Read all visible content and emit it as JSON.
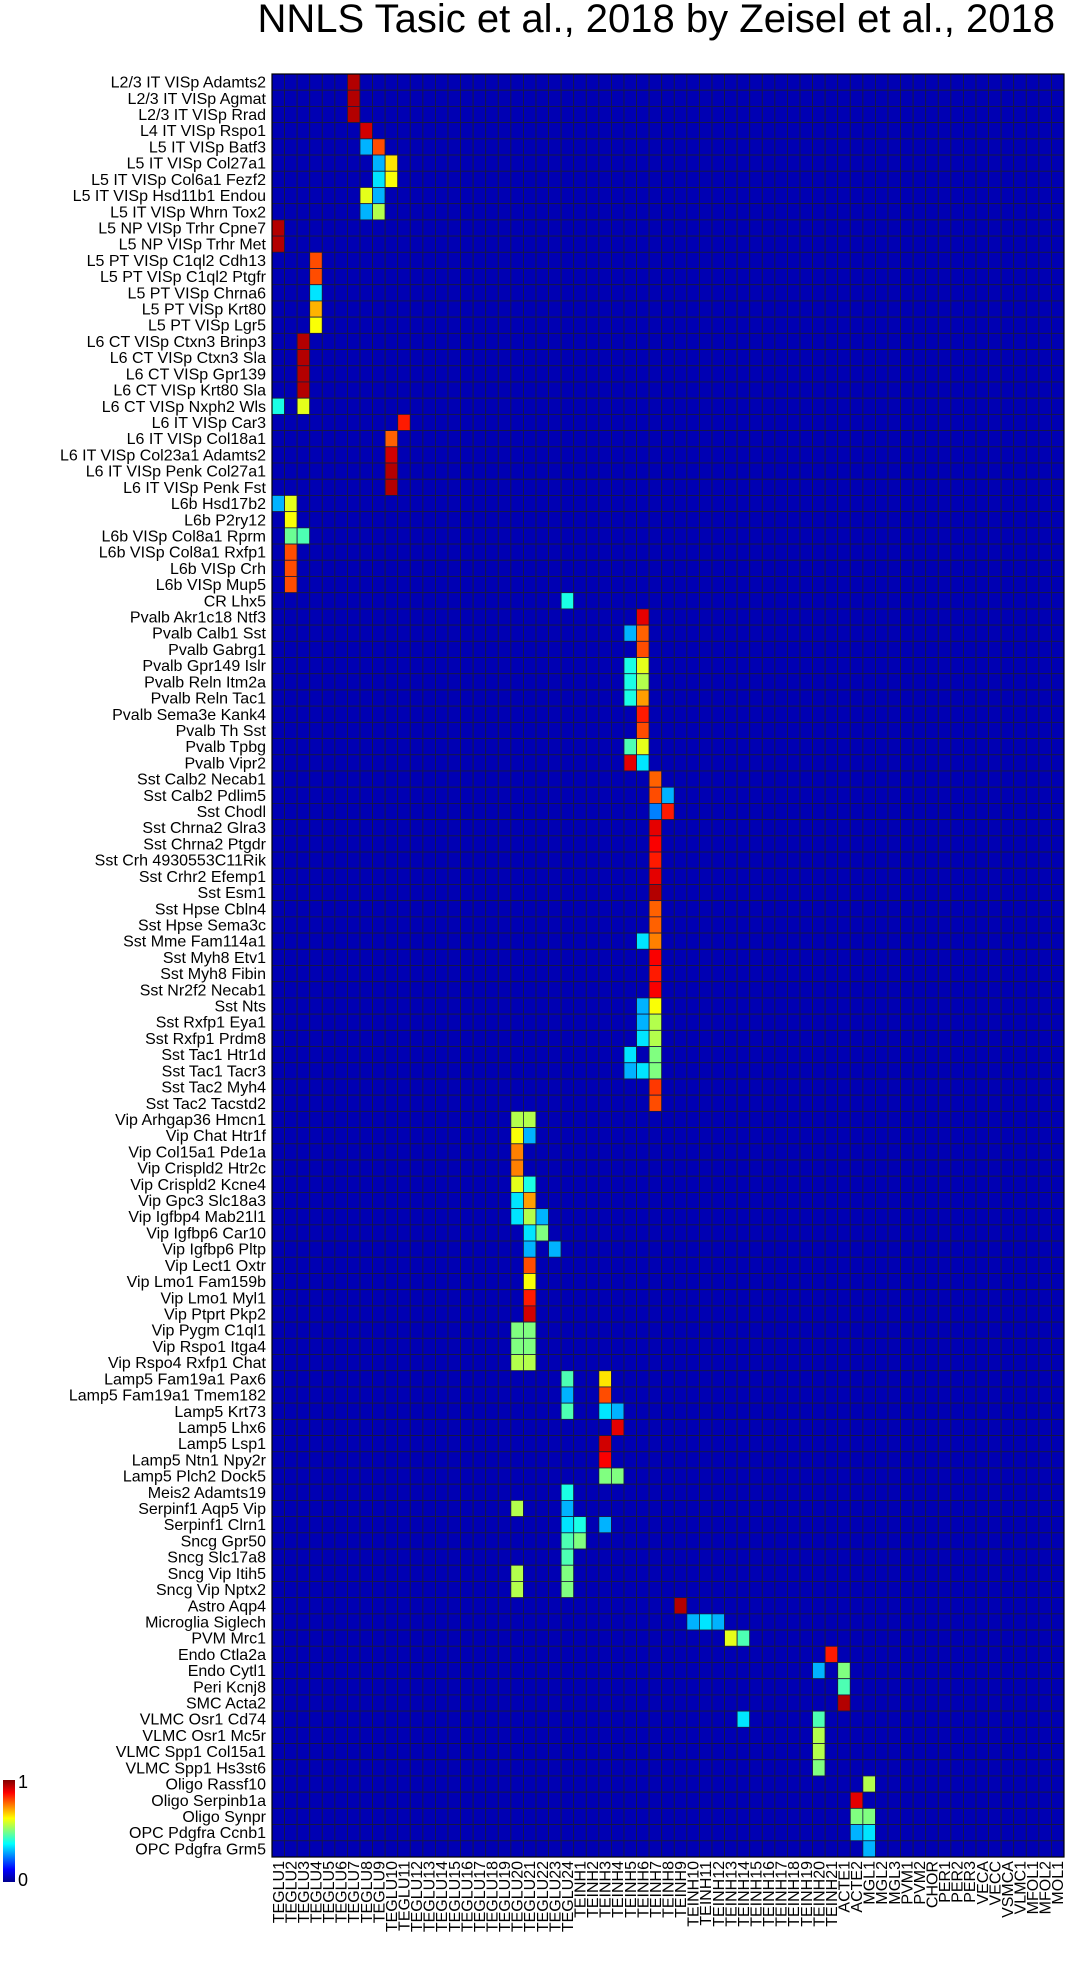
{
  "chart_data": {
    "type": "heatmap",
    "title": "NNLS Tasic et al., 2018 by Zeisel et al., 2018",
    "xlabel": "",
    "ylabel": "",
    "colormap": "jet",
    "colorbar": {
      "min_label": "0",
      "max_label": "1",
      "range": [
        0,
        1
      ],
      "position": "bottom-left"
    },
    "grid": true,
    "rows": [
      "L2/3 IT VISp Adamts2",
      "L2/3 IT VISp Agmat",
      "L2/3 IT VISp Rrad",
      "L4 IT VISp Rspo1",
      "L5 IT VISp Batf3",
      "L5 IT VISp Col27a1",
      "L5 IT VISp Col6a1 Fezf2",
      "L5 IT VISp Hsd11b1 Endou",
      "L5 IT VISp Whrn Tox2",
      "L5 NP VISp Trhr Cpne7",
      "L5 NP VISp Trhr Met",
      "L5 PT VISp C1ql2 Cdh13",
      "L5 PT VISp C1ql2 Ptgfr",
      "L5 PT VISp Chrna6",
      "L5 PT VISp Krt80",
      "L5 PT VISp Lgr5",
      "L6 CT VISp Ctxn3 Brinp3",
      "L6 CT VISp Ctxn3 Sla",
      "L6 CT VISp Gpr139",
      "L6 CT VISp Krt80 Sla",
      "L6 CT VISp Nxph2 Wls",
      "L6 IT VISp Car3",
      "L6 IT VISp Col18a1",
      "L6 IT VISp Col23a1 Adamts2",
      "L6 IT VISp Penk Col27a1",
      "L6 IT VISp Penk Fst",
      "L6b Hsd17b2",
      "L6b P2ry12",
      "L6b VISp Col8a1 Rprm",
      "L6b VISp Col8a1 Rxfp1",
      "L6b VISp Crh",
      "L6b VISp Mup5",
      "CR Lhx5",
      "Pvalb Akr1c18 Ntf3",
      "Pvalb Calb1 Sst",
      "Pvalb Gabrg1",
      "Pvalb Gpr149 Islr",
      "Pvalb Reln Itm2a",
      "Pvalb Reln Tac1",
      "Pvalb Sema3e Kank4",
      "Pvalb Th Sst",
      "Pvalb Tpbg",
      "Pvalb Vipr2",
      "Sst Calb2 Necab1",
      "Sst Calb2 Pdlim5",
      "Sst Chodl",
      "Sst Chrna2 Glra3",
      "Sst Chrna2 Ptgdr",
      "Sst Crh 4930553C11Rik",
      "Sst Crhr2 Efemp1",
      "Sst Esm1",
      "Sst Hpse Cbln4",
      "Sst Hpse Sema3c",
      "Sst Mme Fam114a1",
      "Sst Myh8 Etv1",
      "Sst Myh8 Fibin",
      "Sst Nr2f2 Necab1",
      "Sst Nts",
      "Sst Rxfp1 Eya1",
      "Sst Rxfp1 Prdm8",
      "Sst Tac1 Htr1d",
      "Sst Tac1 Tacr3",
      "Sst Tac2 Myh4",
      "Sst Tac2 Tacstd2",
      "Vip Arhgap36 Hmcn1",
      "Vip Chat Htr1f",
      "Vip Col15a1 Pde1a",
      "Vip Crispld2 Htr2c",
      "Vip Crispld2 Kcne4",
      "Vip Gpc3 Slc18a3",
      "Vip Igfbp4 Mab21l1",
      "Vip Igfbp6 Car10",
      "Vip Igfbp6 Pltp",
      "Vip Lect1 Oxtr",
      "Vip Lmo1 Fam159b",
      "Vip Lmo1 Myl1",
      "Vip Ptprt Pkp2",
      "Vip Pygm C1ql1",
      "Vip Rspo1 Itga4",
      "Vip Rspo4 Rxfp1 Chat",
      "Lamp5 Fam19a1 Pax6",
      "Lamp5 Fam19a1 Tmem182",
      "Lamp5 Krt73",
      "Lamp5 Lhx6",
      "Lamp5 Lsp1",
      "Lamp5 Ntn1 Npy2r",
      "Lamp5 Plch2 Dock5",
      "Meis2 Adamts19",
      "Serpinf1 Aqp5 Vip",
      "Serpinf1 Clrn1",
      "Sncg Gpr50",
      "Sncg Slc17a8",
      "Sncg Vip Itih5",
      "Sncg Vip Nptx2",
      "Astro Aqp4",
      "Microglia Siglech",
      "PVM Mrc1",
      "Endo Ctla2a",
      "Endo Cytl1",
      "Peri Kcnj8",
      "SMC Acta2",
      "VLMC Osr1 Cd74",
      "VLMC Osr1 Mc5r",
      "VLMC Spp1 Col15a1",
      "VLMC Spp1 Hs3st6",
      "Oligo Rassf10",
      "Oligo Serpinb1a",
      "Oligo Synpr",
      "OPC Pdgfra Ccnb1",
      "OPC Pdgfra Grm5"
    ],
    "columns": [
      "TEGLU1",
      "TEGLU2",
      "TEGLU3",
      "TEGLU4",
      "TEGLU5",
      "TEGLU6",
      "TEGLU7",
      "TEGLU8",
      "TEGLU9",
      "TEGLU10",
      "TEGLU11",
      "TEGLU12",
      "TEGLU13",
      "TEGLU14",
      "TEGLU15",
      "TEGLU16",
      "TEGLU17",
      "TEGLU18",
      "TEGLU19",
      "TEGLU20",
      "TEGLU21",
      "TEGLU22",
      "TEGLU23",
      "TEGLU24",
      "TEINH1",
      "TEINH2",
      "TEINH3",
      "TEINH4",
      "TEINH5",
      "TEINH6",
      "TEINH7",
      "TEINH8",
      "TEINH9",
      "TEINH10",
      "TEINH11",
      "TEINH12",
      "TEINH13",
      "TEINH14",
      "TEINH15",
      "TEINH16",
      "TEINH17",
      "TEINH18",
      "TEINH19",
      "TEINH20",
      "TEINH21",
      "ACTE1",
      "ACTE2",
      "MGL1",
      "MGL2",
      "MGL3",
      "PVM1",
      "PVM2",
      "CHOR",
      "PER1",
      "PER2",
      "PER3",
      "VECA",
      "VECC",
      "VSMCA",
      "VLMC1",
      "MFOL1",
      "MFOL2",
      "MOL1"
    ],
    "row_labels": [
      "L2/3 IT VISp Adamts2",
      "L2/3 IT VISp Agmat",
      "L2/3 IT VISp Rrad",
      "L4 IT VISp Rspo1",
      "L5 IT VISp Batf3",
      "L5 IT VISp Col27a1",
      "L5 IT VISp Col6a1 Fezf2",
      "L5 IT VISp Hsd11b1 Endou",
      "L5 IT VISp Whrn Tox2",
      "L5 NP VISp Trhr Cpne7",
      "L5 NP VISp Trhr Met",
      "L5 PT VISp C1ql2 Cdh13",
      "L5 PT VISp C1ql2 Ptgfr",
      "L5 PT VISp Chrna6",
      "L5 PT VISp Krt80",
      "L5 PT VISp Lgr5",
      "L6 CT VISp Ctxn3 Brinp3",
      "L6 CT VISp Ctxn3 Sla",
      "L6 CT VISp Gpr139",
      "L6 CT VISp Krt80 Sla",
      "L6 CT VISp Nxph2 Wls",
      "L6 IT VISp Car3",
      "L6 IT VISp Col18a1",
      "L6 IT VISp Col23a1 Adamts2",
      "L6 IT VISp Penk Col27a1",
      "L6 IT VISp Penk Fst",
      "L6b Hsd17b2",
      "L6b P2ry12",
      "L6b VISp Col8a1 Rprm",
      "L6b VISp Col8a1 Rxfp1",
      "L6b VISp Crh",
      "L6b VISp Mup5",
      "CR Lhx5",
      "Pvalb Akr1c18 Ntf3",
      "Pvalb Calb1 Sst",
      "Pvalb Gabrg1",
      "Pvalb Gpr149 Islr",
      "Pvalb Reln Itm2a",
      "Pvalb Reln Tac1",
      "Pvalb Sema3e Kank4",
      "Pvalb Th Sst",
      "Pvalb Tpbg",
      "Pvalb Vipr2",
      "Sst Calb2 Necab1",
      "Sst Calb2 Pdlim5",
      "Sst Chodl",
      "Sst Chrna2 Glra3",
      "Sst Chrna2 Ptgdr",
      "Sst Crh 4930553C11Rik",
      "Sst Crhr2 Efemp1",
      "Sst Esm1",
      "Sst Hpse Cbln4",
      "Sst Hpse Sema3c",
      "Sst Mme Fam114a1",
      "Sst Myh8 Etv1",
      "Sst Myh8 Fibin",
      "Sst Nr2f2 Necab1",
      "Sst Nts",
      "Sst Rxfp1 Eya1",
      "Sst Rxfp1 Prdm8",
      "Sst Tac1 Htr1d",
      "Sst Tac1 Tacr3",
      "Sst Tac2 Myh4",
      "Sst Tac2 Tacstd2",
      "Vip Arhgap36 Hmcn1",
      "Vip Chat Htr1f",
      "Vip Col15a1 Pde1a",
      "Vip Crispld2 Htr2c",
      "Vip Crispld2 Kcne4",
      "Vip Gpc3 Slc18a3",
      "Vip Igfbp4 Mab21l1",
      "Vip Igfbp6 Car10",
      "Vip Igfbp6 Pltp",
      "Vip Lect1 Oxtr",
      "Vip Lmo1 Fam159b",
      "Vip Lmo1 Myl1",
      "Vip Ptprt Pkp2",
      "Vip Pygm C1ql1",
      "Vip Rspo1 Itga4",
      "Vip Rspo4 Rxfp1 Chat",
      "Lamp5 Fam19a1 Pax6",
      "Lamp5 Fam19a1 Tmem182",
      "Lamp5 Krt73",
      "Lamp5 Lhx6",
      "Lamp5 Lsp1",
      "Lamp5 Ntn1 Npy2r",
      "Lamp5 Plch2 Dock5",
      "Meis2 Adamts19",
      "Serpinf1 Aqp5 Vip",
      "Serpinf1 Clrn1",
      "Sncg Gpr50",
      "Sncg Slc17a8",
      "Sncg Vip Itih5",
      "Sncg Vip Nptx2",
      "Astro Aqp4",
      "Microglia Siglech",
      "PVM Mrc1",
      "Endo Ctla2a",
      "Endo Cytl1",
      "Peri Kcnj8",
      "SMC Acta2",
      "VLMC Osr1 Cd74",
      "VLMC Osr1 Mc5r",
      "VLMC Spp1 Col15a1",
      "VLMC Spp1 Hs3st6",
      "Oligo Rassf10",
      "Oligo Serpinb1a",
      "Oligo Synpr",
      "OPC Pdgfra Ccnb1",
      "OPC Pdgfra Grm5"
    ],
    "col_labels": [
      "TEGLU1",
      "TEGLU2",
      "TEGLU3",
      "TEGLU4",
      "TEGLU5",
      "TEGLU6",
      "TEGLU7",
      "TEGLU8",
      "TEGLU9",
      "TEGLU10",
      "TEGLU11",
      "TEGLU12",
      "TEGLU13",
      "TEGLU14",
      "TEGLU15",
      "TEGLU16",
      "TEGLU17",
      "TEGLU18",
      "TEGLU19",
      "TEGLU20",
      "TEGLU21",
      "TEGLU22",
      "TEGLU23",
      "TEGLU24",
      "TEINH1",
      "TEINH2",
      "TEINH3",
      "TEINH4",
      "TEINH5",
      "TEINH6",
      "TEINH7",
      "TEINH8",
      "TEINH9",
      "TEINH10",
      "TEINH11",
      "TEINH12",
      "TEINH13",
      "TEINH14",
      "TEINH15",
      "TEINH16",
      "TEINH17",
      "TEINH18",
      "TEINH19",
      "TEINH20",
      "TEINH21",
      "ACTE1",
      "ACTE2",
      "MGL1",
      "MGL2",
      "MGL3",
      "PVM1",
      "PVM2",
      "CHOR",
      "PER1",
      "PER2",
      "PER3",
      "VECA",
      "VECC",
      "VSMCA",
      "VLMC1",
      "MFOL1",
      "MFOL2",
      "MOL1"
    ],
    "background_value": 0.05,
    "cells": [
      [
        0,
        6,
        0.95
      ],
      [
        1,
        6,
        0.95
      ],
      [
        2,
        6,
        0.95
      ],
      [
        3,
        7,
        0.92
      ],
      [
        4,
        8,
        0.8
      ],
      [
        4,
        7,
        0.3
      ],
      [
        5,
        9,
        0.65
      ],
      [
        5,
        8,
        0.3
      ],
      [
        6,
        9,
        0.62
      ],
      [
        6,
        8,
        0.35
      ],
      [
        7,
        7,
        0.6
      ],
      [
        7,
        8,
        0.3
      ],
      [
        8,
        8,
        0.55
      ],
      [
        8,
        7,
        0.3
      ],
      [
        9,
        0,
        0.95
      ],
      [
        10,
        0,
        0.95
      ],
      [
        11,
        3,
        0.8
      ],
      [
        12,
        3,
        0.8
      ],
      [
        13,
        3,
        0.35
      ],
      [
        14,
        3,
        0.7
      ],
      [
        15,
        3,
        0.62
      ],
      [
        16,
        2,
        0.95
      ],
      [
        17,
        2,
        0.95
      ],
      [
        18,
        2,
        0.95
      ],
      [
        19,
        2,
        0.95
      ],
      [
        20,
        2,
        0.6
      ],
      [
        20,
        0,
        0.4
      ],
      [
        21,
        10,
        0.85
      ],
      [
        22,
        9,
        0.78
      ],
      [
        23,
        9,
        0.92
      ],
      [
        24,
        9,
        0.95
      ],
      [
        25,
        9,
        0.95
      ],
      [
        26,
        1,
        0.6
      ],
      [
        26,
        0,
        0.3
      ],
      [
        27,
        1,
        0.62
      ],
      [
        28,
        1,
        0.48
      ],
      [
        28,
        2,
        0.45
      ],
      [
        29,
        1,
        0.8
      ],
      [
        30,
        1,
        0.8
      ],
      [
        31,
        1,
        0.8
      ],
      [
        32,
        23,
        0.4
      ],
      [
        33,
        29,
        0.9
      ],
      [
        34,
        29,
        0.78
      ],
      [
        34,
        28,
        0.3
      ],
      [
        35,
        29,
        0.8
      ],
      [
        36,
        28,
        0.4
      ],
      [
        36,
        29,
        0.6
      ],
      [
        37,
        28,
        0.4
      ],
      [
        37,
        29,
        0.55
      ],
      [
        38,
        28,
        0.4
      ],
      [
        38,
        29,
        0.72
      ],
      [
        39,
        29,
        0.85
      ],
      [
        40,
        29,
        0.8
      ],
      [
        41,
        28,
        0.45
      ],
      [
        41,
        29,
        0.6
      ],
      [
        42,
        28,
        0.9
      ],
      [
        42,
        29,
        0.35
      ],
      [
        43,
        30,
        0.78
      ],
      [
        44,
        30,
        0.8
      ],
      [
        44,
        31,
        0.3
      ],
      [
        45,
        31,
        0.85
      ],
      [
        45,
        30,
        0.25
      ],
      [
        46,
        30,
        0.9
      ],
      [
        47,
        30,
        0.88
      ],
      [
        48,
        30,
        0.85
      ],
      [
        49,
        30,
        0.9
      ],
      [
        50,
        30,
        0.95
      ],
      [
        51,
        30,
        0.78
      ],
      [
        52,
        30,
        0.78
      ],
      [
        53,
        30,
        0.75
      ],
      [
        53,
        29,
        0.35
      ],
      [
        54,
        30,
        0.88
      ],
      [
        55,
        30,
        0.85
      ],
      [
        56,
        30,
        0.88
      ],
      [
        57,
        30,
        0.62
      ],
      [
        57,
        29,
        0.3
      ],
      [
        58,
        30,
        0.55
      ],
      [
        58,
        29,
        0.3
      ],
      [
        59,
        30,
        0.55
      ],
      [
        59,
        29,
        0.35
      ],
      [
        60,
        30,
        0.5
      ],
      [
        60,
        28,
        0.35
      ],
      [
        61,
        30,
        0.5
      ],
      [
        61,
        29,
        0.35
      ],
      [
        61,
        28,
        0.3
      ],
      [
        62,
        30,
        0.82
      ],
      [
        63,
        30,
        0.8
      ],
      [
        64,
        19,
        0.55
      ],
      [
        64,
        20,
        0.55
      ],
      [
        65,
        19,
        0.62
      ],
      [
        65,
        20,
        0.3
      ],
      [
        66,
        19,
        0.75
      ],
      [
        67,
        19,
        0.75
      ],
      [
        68,
        19,
        0.6
      ],
      [
        68,
        20,
        0.4
      ],
      [
        69,
        19,
        0.35
      ],
      [
        69,
        20,
        0.72
      ],
      [
        70,
        19,
        0.35
      ],
      [
        70,
        20,
        0.55
      ],
      [
        70,
        21,
        0.3
      ],
      [
        71,
        20,
        0.35
      ],
      [
        71,
        21,
        0.5
      ],
      [
        72,
        20,
        0.3
      ],
      [
        72,
        22,
        0.3
      ],
      [
        73,
        20,
        0.8
      ],
      [
        74,
        20,
        0.62
      ],
      [
        75,
        20,
        0.85
      ],
      [
        76,
        20,
        0.92
      ],
      [
        77,
        19,
        0.5
      ],
      [
        77,
        20,
        0.5
      ],
      [
        78,
        19,
        0.5
      ],
      [
        78,
        20,
        0.5
      ],
      [
        79,
        19,
        0.55
      ],
      [
        79,
        20,
        0.55
      ],
      [
        80,
        23,
        0.45
      ],
      [
        80,
        26,
        0.65
      ],
      [
        81,
        23,
        0.3
      ],
      [
        81,
        26,
        0.8
      ],
      [
        82,
        23,
        0.45
      ],
      [
        82,
        26,
        0.35
      ],
      [
        82,
        27,
        0.3
      ],
      [
        83,
        27,
        0.9
      ],
      [
        84,
        26,
        0.92
      ],
      [
        85,
        26,
        0.88
      ],
      [
        86,
        26,
        0.5
      ],
      [
        86,
        27,
        0.5
      ],
      [
        87,
        23,
        0.4
      ],
      [
        88,
        19,
        0.55
      ],
      [
        88,
        23,
        0.3
      ],
      [
        89,
        23,
        0.35
      ],
      [
        89,
        24,
        0.4
      ],
      [
        89,
        26,
        0.3
      ],
      [
        90,
        23,
        0.45
      ],
      [
        90,
        24,
        0.5
      ],
      [
        91,
        23,
        0.45
      ],
      [
        92,
        19,
        0.55
      ],
      [
        92,
        23,
        0.5
      ],
      [
        93,
        19,
        0.55
      ],
      [
        93,
        23,
        0.5
      ],
      [
        94,
        32,
        0.95
      ],
      [
        95,
        33,
        0.3
      ],
      [
        95,
        34,
        0.35
      ],
      [
        95,
        35,
        0.3
      ],
      [
        96,
        36,
        0.6
      ],
      [
        96,
        37,
        0.45
      ],
      [
        97,
        44,
        0.85
      ],
      [
        98,
        45,
        0.5
      ],
      [
        98,
        43,
        0.3
      ],
      [
        99,
        45,
        0.45
      ],
      [
        100,
        45,
        0.95
      ],
      [
        101,
        37,
        0.35
      ],
      [
        101,
        43,
        0.45
      ],
      [
        102,
        43,
        0.55
      ],
      [
        103,
        43,
        0.55
      ],
      [
        104,
        43,
        0.5
      ],
      [
        105,
        47,
        0.55
      ],
      [
        106,
        46,
        0.9
      ],
      [
        107,
        46,
        0.5
      ],
      [
        107,
        47,
        0.5
      ],
      [
        108,
        46,
        0.3
      ],
      [
        108,
        47,
        0.35
      ],
      [
        109,
        47,
        0.3
      ]
    ]
  }
}
